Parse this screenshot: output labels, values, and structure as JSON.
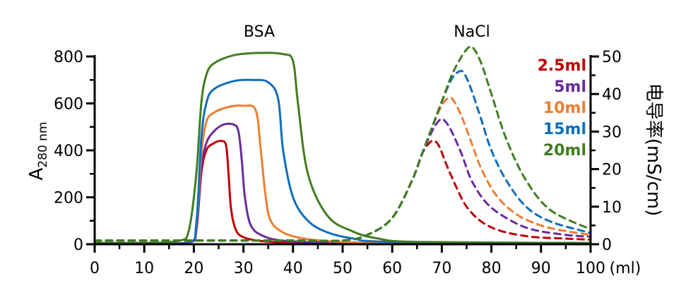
{
  "chart_data": {
    "type": "line",
    "title": "",
    "annotations": [
      "BSA",
      "NaCl"
    ],
    "xlabel": "(ml)",
    "ylabel": {
      "base": "A",
      "sub": "280 nm"
    },
    "y2label": "电导率(mS/cm)",
    "xlim": [
      0,
      100
    ],
    "ylim": [
      0,
      800
    ],
    "y2lim": [
      0,
      50
    ],
    "x_ticks": [
      0,
      10,
      20,
      30,
      40,
      50,
      60,
      70,
      80,
      90,
      100
    ],
    "y_ticks": [
      0,
      200,
      400,
      600,
      800
    ],
    "y2_ticks": [
      0,
      10,
      20,
      30,
      40,
      50
    ],
    "legend": [
      "2.5ml",
      "5ml",
      "10ml",
      "15ml",
      "20ml"
    ],
    "colors": {
      "2.5ml": "#c00000",
      "5ml": "#6a2a9a",
      "10ml": "#ed7d31",
      "15ml": "#0d6ebd",
      "20ml": "#3f7d20"
    },
    "series": [
      {
        "name": "2.5ml",
        "kind": "absorbance",
        "axis": "left",
        "style": "solid",
        "x": [
          0,
          10,
          19,
          20.5,
          21.5,
          22.5,
          24,
          25.5,
          26.5,
          27,
          27.5,
          28.5,
          30,
          33,
          38,
          45,
          60,
          100
        ],
        "y": [
          5,
          5,
          8,
          60,
          300,
          400,
          430,
          440,
          420,
          300,
          150,
          60,
          30,
          15,
          8,
          5,
          3,
          3
        ]
      },
      {
        "name": "5ml",
        "kind": "absorbance",
        "axis": "left",
        "style": "solid",
        "x": [
          0,
          10,
          19,
          20.5,
          21.5,
          22.5,
          24,
          26,
          28,
          29,
          29.7,
          30.3,
          31.5,
          34,
          38,
          45,
          60,
          100
        ],
        "y": [
          5,
          5,
          8,
          60,
          320,
          430,
          480,
          510,
          510,
          480,
          350,
          200,
          80,
          35,
          15,
          8,
          4,
          3
        ]
      },
      {
        "name": "10ml",
        "kind": "absorbance",
        "axis": "left",
        "style": "solid",
        "x": [
          0,
          10,
          19,
          20.5,
          21.5,
          22.5,
          24,
          27,
          30,
          32.5,
          33.5,
          34.5,
          35.5,
          38,
          42,
          48,
          60,
          100
        ],
        "y": [
          5,
          5,
          8,
          80,
          380,
          520,
          560,
          585,
          590,
          570,
          400,
          200,
          100,
          50,
          25,
          12,
          5,
          3
        ]
      },
      {
        "name": "15ml",
        "kind": "absorbance",
        "axis": "left",
        "style": "solid",
        "x": [
          0,
          10,
          19,
          20.5,
          21.5,
          22.5,
          24,
          28,
          32,
          35,
          37,
          38,
          40,
          43,
          47,
          52,
          60,
          100
        ],
        "y": [
          5,
          5,
          8,
          90,
          450,
          600,
          660,
          695,
          700,
          690,
          620,
          400,
          200,
          100,
          50,
          25,
          10,
          5
        ]
      },
      {
        "name": "20ml",
        "kind": "absorbance",
        "axis": "left",
        "style": "solid",
        "x": [
          0,
          10,
          17,
          19,
          20.5,
          21.5,
          22.5,
          24,
          28,
          33,
          38,
          40,
          41,
          43,
          47,
          52,
          57,
          65,
          100
        ],
        "y": [
          5,
          5,
          15,
          60,
          300,
          600,
          720,
          770,
          805,
          815,
          810,
          780,
          600,
          300,
          120,
          55,
          25,
          10,
          5
        ]
      },
      {
        "name": "2.5ml",
        "kind": "conductivity",
        "axis": "right",
        "style": "dashed",
        "x": [
          0,
          20,
          40,
          50,
          55,
          60,
          64,
          66,
          67.5,
          68.5,
          69.5,
          71,
          73,
          75,
          78,
          82,
          88,
          95,
          100
        ],
        "y": [
          1,
          1,
          1,
          1,
          2.5,
          7,
          17,
          24,
          27,
          27.5,
          26,
          21,
          15,
          10,
          6,
          3.5,
          2,
          1.5,
          1.2
        ]
      },
      {
        "name": "5ml",
        "kind": "conductivity",
        "axis": "right",
        "style": "dashed",
        "x": [
          0,
          20,
          40,
          50,
          55,
          60,
          64,
          66,
          68,
          69.5,
          70.5,
          72,
          74,
          76,
          79,
          83,
          88,
          95,
          100
        ],
        "y": [
          1,
          1,
          1,
          1,
          2.5,
          7,
          17,
          24,
          30,
          33,
          33,
          30,
          24,
          17,
          11,
          7,
          4,
          2.5,
          2
        ]
      },
      {
        "name": "10ml",
        "kind": "conductivity",
        "axis": "right",
        "style": "dashed",
        "x": [
          0,
          20,
          40,
          50,
          55,
          60,
          64,
          66,
          68,
          70,
          71.5,
          72.5,
          74,
          76,
          78,
          81,
          85,
          90,
          95,
          100
        ],
        "y": [
          1,
          1,
          1,
          1,
          2.5,
          7,
          17,
          24,
          31,
          37,
          39,
          38,
          34,
          27,
          20,
          13,
          8,
          5,
          3.5,
          2.5
        ]
      },
      {
        "name": "15ml",
        "kind": "conductivity",
        "axis": "right",
        "style": "dashed",
        "x": [
          0,
          20,
          40,
          50,
          55,
          60,
          64,
          66,
          68,
          70,
          72,
          73.5,
          74.5,
          76,
          78,
          80,
          83,
          87,
          92,
          100
        ],
        "y": [
          1,
          1,
          1,
          1,
          2.5,
          7,
          17,
          24,
          31,
          38,
          44,
          46,
          45.5,
          41,
          33,
          25,
          17,
          10,
          6,
          3
        ]
      },
      {
        "name": "20ml",
        "kind": "conductivity",
        "axis": "right",
        "style": "dashed",
        "x": [
          0,
          20,
          40,
          50,
          55,
          60,
          64,
          66,
          68,
          70,
          72,
          74,
          75.5,
          76.5,
          78,
          80,
          83,
          87,
          92,
          100
        ],
        "y": [
          1,
          1,
          1,
          1,
          2.5,
          7,
          17,
          24,
          31,
          38,
          45,
          50,
          52.5,
          52,
          48,
          40,
          28,
          17,
          9,
          4
        ]
      }
    ]
  }
}
